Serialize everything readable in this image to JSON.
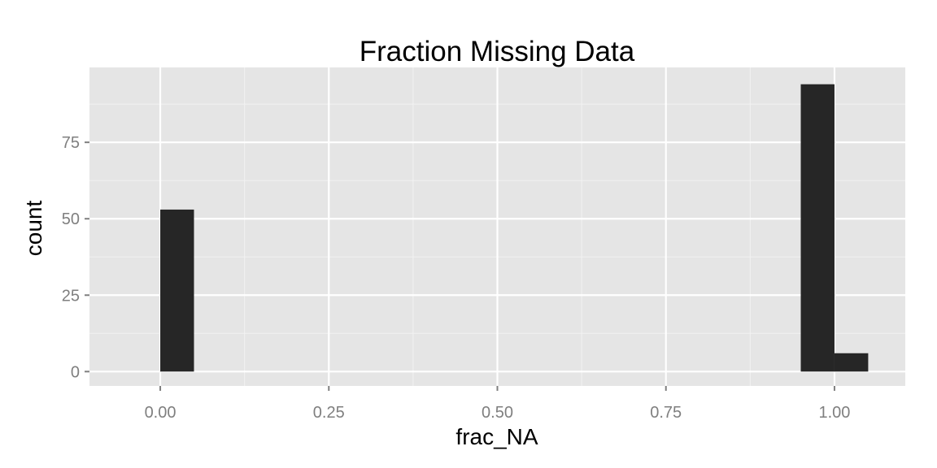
{
  "chart_data": {
    "type": "bar",
    "title": "Fraction Missing Data",
    "xlabel": "frac_NA",
    "ylabel": "count",
    "xlim": [
      -0.105,
      1.105
    ],
    "ylim": [
      -4.7,
      99.5
    ],
    "x_ticks": [
      {
        "value": 0,
        "label": "0.00"
      },
      {
        "value": 0.25,
        "label": "0.25"
      },
      {
        "value": 0.5,
        "label": "0.50"
      },
      {
        "value": 0.75,
        "label": "0.75"
      },
      {
        "value": 1,
        "label": "1.00"
      }
    ],
    "y_ticks": [
      {
        "value": 0,
        "label": "0"
      },
      {
        "value": 25,
        "label": "25"
      },
      {
        "value": 50,
        "label": "50"
      },
      {
        "value": 75,
        "label": "75"
      }
    ],
    "bins": [
      {
        "x0": 0.0,
        "x1": 0.05,
        "count": 53
      },
      {
        "x0": 0.95,
        "x1": 1.0,
        "count": 94
      },
      {
        "x0": 1.0,
        "x1": 1.05,
        "count": 6
      }
    ],
    "grid": true,
    "colors": {
      "panel": "#e5e5e5",
      "grid_major": "#ffffff",
      "grid_minor": "#f2f2f2",
      "bar": "#262626",
      "tick_label": "#7f7f7f",
      "tick_mark": "#7f7f7f"
    }
  }
}
